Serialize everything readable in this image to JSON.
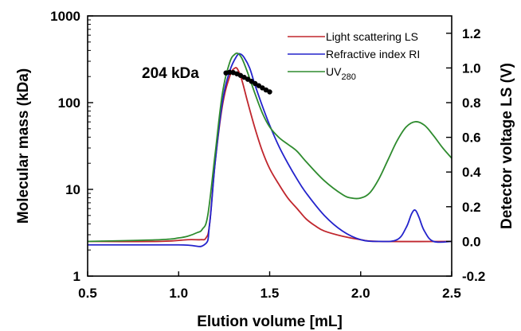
{
  "chart_data": {
    "type": "line",
    "xlabel": "Elution volume [mL]",
    "ylabel_left": "Molecular mass (kDa)",
    "ylabel_right": "Detector voltage LS (V)",
    "xlim": [
      0.5,
      2.5
    ],
    "xticks": [
      0.5,
      1.0,
      1.5,
      2.0,
      2.5
    ],
    "xtick_labels": [
      "0.5",
      "1.0",
      "1.5",
      "2.0",
      "2.5"
    ],
    "ylim_left": [
      1,
      1000
    ],
    "yscale_left": "log",
    "yticks_left": [
      1,
      10,
      100,
      1000
    ],
    "ytick_labels_left": [
      "1",
      "10",
      "100",
      "1000"
    ],
    "ylim_right": [
      -0.2,
      1.3
    ],
    "yticks_right": [
      -0.2,
      0.0,
      0.2,
      0.4,
      0.6,
      0.8,
      1.0,
      1.2
    ],
    "ytick_labels_right": [
      "-0.2",
      "0.0",
      "0.2",
      "0.4",
      "0.6",
      "0.8",
      "1.0",
      "1.2"
    ],
    "grid": false,
    "legend_position": "top-right",
    "series": [
      {
        "name": "Light scattering LS",
        "color": "#c0262d",
        "axis": "right",
        "x": [
          0.5,
          0.9,
          1.05,
          1.12,
          1.15,
          1.17,
          1.2,
          1.24,
          1.28,
          1.31,
          1.33,
          1.35,
          1.38,
          1.42,
          1.46,
          1.5,
          1.55,
          1.6,
          1.65,
          1.7,
          1.75,
          1.8,
          1.9,
          2.0,
          2.1,
          2.5
        ],
        "y": [
          0.0,
          0.0,
          0.01,
          0.01,
          0.02,
          0.1,
          0.45,
          0.78,
          0.95,
          1.0,
          0.98,
          0.92,
          0.8,
          0.65,
          0.52,
          0.42,
          0.33,
          0.25,
          0.19,
          0.13,
          0.09,
          0.06,
          0.03,
          0.01,
          0.0,
          0.0
        ]
      },
      {
        "name": "Refractive index RI",
        "color": "#2323cc",
        "axis": "right",
        "x": [
          0.5,
          1.0,
          1.14,
          1.17,
          1.2,
          1.24,
          1.28,
          1.32,
          1.34,
          1.36,
          1.39,
          1.42,
          1.46,
          1.5,
          1.55,
          1.6,
          1.65,
          1.7,
          1.8,
          1.9,
          2.0,
          2.1,
          2.2,
          2.25,
          2.28,
          2.3,
          2.32,
          2.35,
          2.4,
          2.5
        ],
        "y": [
          -0.02,
          -0.02,
          -0.02,
          0.1,
          0.45,
          0.8,
          0.98,
          1.07,
          1.08,
          1.06,
          1.0,
          0.9,
          0.78,
          0.67,
          0.55,
          0.45,
          0.36,
          0.28,
          0.15,
          0.06,
          0.01,
          0.0,
          0.01,
          0.08,
          0.16,
          0.18,
          0.14,
          0.06,
          0.0,
          0.0
        ]
      },
      {
        "name": "UV280",
        "color": "#2e8b2e",
        "axis": "right",
        "x": [
          0.5,
          0.9,
          1.0,
          1.05,
          1.1,
          1.13,
          1.16,
          1.2,
          1.24,
          1.28,
          1.31,
          1.33,
          1.35,
          1.38,
          1.42,
          1.46,
          1.5,
          1.55,
          1.6,
          1.65,
          1.7,
          1.8,
          1.9,
          1.95,
          2.0,
          2.05,
          2.1,
          2.15,
          2.2,
          2.25,
          2.3,
          2.35,
          2.4,
          2.45,
          2.5
        ],
        "y": [
          0.0,
          0.01,
          0.02,
          0.03,
          0.05,
          0.07,
          0.15,
          0.5,
          0.85,
          1.03,
          1.08,
          1.08,
          1.05,
          0.97,
          0.85,
          0.74,
          0.66,
          0.6,
          0.56,
          0.52,
          0.46,
          0.35,
          0.27,
          0.25,
          0.25,
          0.28,
          0.36,
          0.47,
          0.58,
          0.66,
          0.69,
          0.67,
          0.61,
          0.54,
          0.48
        ]
      }
    ],
    "molar_mass_points": {
      "axis": "left",
      "color": "#000000",
      "x": [
        1.26,
        1.28,
        1.3,
        1.32,
        1.34,
        1.36,
        1.38,
        1.4,
        1.42,
        1.44,
        1.46,
        1.48,
        1.5
      ],
      "y": [
        220,
        224,
        222,
        215,
        206,
        196,
        186,
        176,
        166,
        157,
        148,
        140,
        133
      ]
    },
    "annotations": [
      {
        "text": "204 kDa",
        "x": 1.33,
        "y_left": 204
      }
    ]
  }
}
